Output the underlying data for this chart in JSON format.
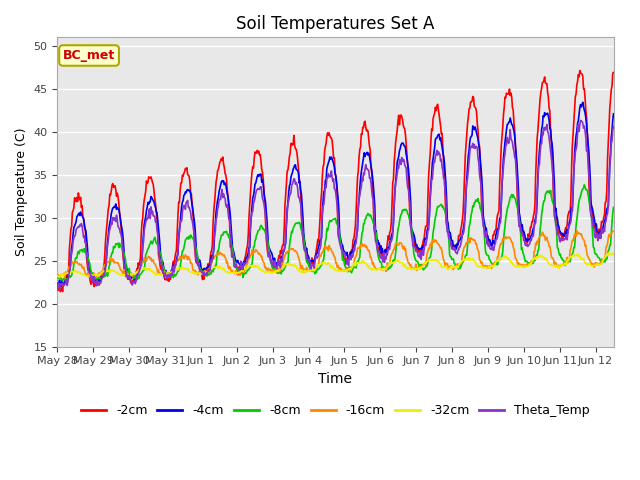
{
  "title": "Soil Temperatures Set A",
  "xlabel": "Time",
  "ylabel": "Soil Temperature (C)",
  "ylim": [
    15,
    51
  ],
  "yticks": [
    15,
    20,
    25,
    30,
    35,
    40,
    45,
    50
  ],
  "annotation": "BC_met",
  "annotation_color": "#CC0000",
  "annotation_bg": "#FFFFCC",
  "annotation_edge": "#AAAA00",
  "colors": {
    "-2cm": "#FF0000",
    "-4cm": "#0000EE",
    "-8cm": "#00CC00",
    "-16cm": "#FF8800",
    "-32cm": "#EEEE00",
    "Theta_Temp": "#8833CC"
  },
  "bg_color": "#E8E8E8",
  "grid_color": "#FFFFFF",
  "tick_labels": [
    "May 28",
    "May 29",
    "May 30",
    "May 31",
    "Jun 1",
    "Jun 2",
    "Jun 3",
    "Jun 4",
    "Jun 5",
    "Jun 6",
    "Jun 7",
    "Jun 8",
    "Jun 9",
    "Jun 10",
    "Jun 11",
    "Jun 12"
  ],
  "num_days": 15.5,
  "points_per_day": 48
}
